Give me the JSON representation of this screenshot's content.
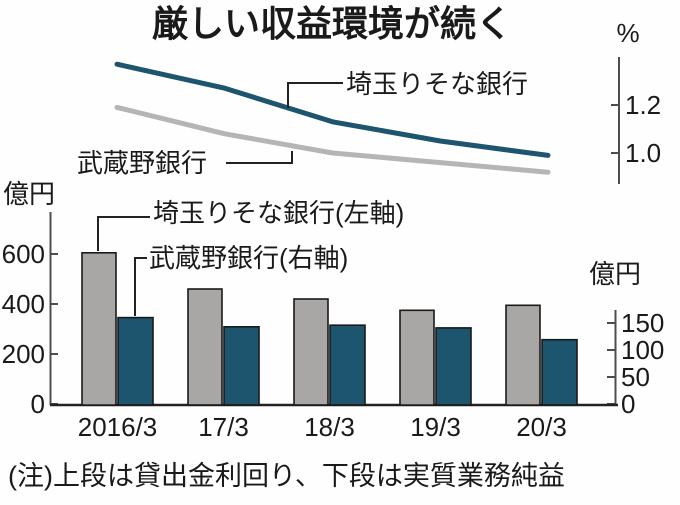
{
  "title": "厳しい収益環境が続く",
  "note": "(注)上段は貸出金利回り、下段は実質業務純益",
  "colors": {
    "teal": "#1d546e",
    "bar_gray": "#a9a7a5",
    "line_gray": "#b7b4b7",
    "axis": "#4d4d4d",
    "baseline": "#222222",
    "bar_border": "#1a1a1a"
  },
  "chart_data": [
    {
      "id": "lending-rate-line-chart",
      "type": "line",
      "unit_label": "%",
      "x": [
        "2016/3",
        "17/3",
        "18/3",
        "19/3",
        "20/3"
      ],
      "yticks": [
        1.0,
        1.2
      ],
      "ylim": [
        0.9,
        1.4
      ],
      "grid": false,
      "legend_position": "inline-callouts",
      "series": [
        {
          "name": "埼玉りそな銀行",
          "color_key": "teal",
          "values": [
            1.37,
            1.27,
            1.13,
            1.05,
            0.99
          ]
        },
        {
          "name": "武蔵野銀行",
          "color_key": "line_gray",
          "values": [
            1.19,
            1.08,
            1.0,
            0.96,
            0.92
          ]
        }
      ]
    },
    {
      "id": "net-business-profit-bar-chart",
      "type": "bar",
      "categories": [
        "2016/3",
        "17/3",
        "18/3",
        "19/3",
        "20/3"
      ],
      "left_axis": {
        "unit_label": "億円",
        "ticks": [
          0,
          200,
          400,
          600
        ],
        "ylim": [
          0,
          600
        ]
      },
      "right_axis": {
        "unit_label": "億円",
        "ticks": [
          0,
          50,
          100,
          150
        ],
        "ylim": [
          0,
          150
        ]
      },
      "grid": false,
      "legend_position": "inline-callouts",
      "series": [
        {
          "name": "埼玉りそな銀行(左軸)",
          "axis": "left",
          "color_key": "bar_gray",
          "values": [
            605,
            460,
            420,
            375,
            395
          ]
        },
        {
          "name": "武蔵野銀行(右軸)",
          "axis": "right",
          "color_key": "teal",
          "values": [
            160,
            143,
            146,
            141,
            119
          ]
        }
      ]
    }
  ]
}
